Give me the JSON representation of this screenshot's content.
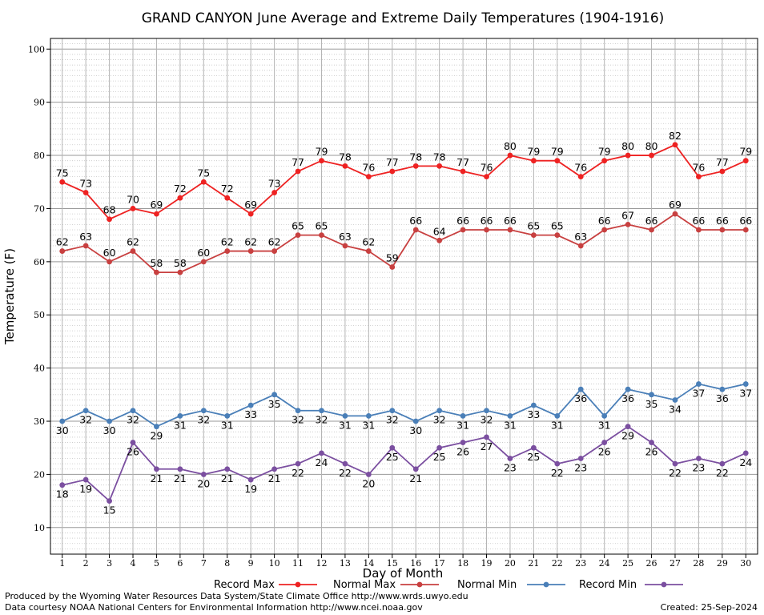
{
  "chart_data": {
    "type": "line",
    "title": "GRAND CANYON June Average and Extreme Daily Temperatures (1904-1916)",
    "xlabel": "Day of Month",
    "ylabel": "Temperature (F)",
    "xlim": [
      0.5,
      30.5
    ],
    "ylim": [
      5,
      102
    ],
    "yticks": [
      10,
      20,
      30,
      40,
      50,
      60,
      70,
      80,
      90,
      100
    ],
    "x": [
      1,
      2,
      3,
      4,
      5,
      6,
      7,
      8,
      9,
      10,
      11,
      12,
      13,
      14,
      15,
      16,
      17,
      18,
      19,
      20,
      21,
      22,
      23,
      24,
      25,
      26,
      27,
      28,
      29,
      30
    ],
    "grid": true,
    "legend_position": "bottom",
    "series": [
      {
        "name": "Record Max",
        "color": "#ee2222",
        "label_pos": "above",
        "values": [
          75,
          73,
          68,
          70,
          69,
          72,
          75,
          72,
          69,
          73,
          77,
          79,
          78,
          76,
          77,
          78,
          78,
          77,
          76,
          80,
          79,
          79,
          76,
          79,
          80,
          80,
          82,
          76,
          77,
          79
        ]
      },
      {
        "name": "Normal Max",
        "color": "#c84040",
        "label_pos": "above",
        "values": [
          62,
          63,
          60,
          62,
          58,
          58,
          60,
          62,
          62,
          62,
          65,
          65,
          63,
          62,
          59,
          66,
          64,
          66,
          66,
          66,
          65,
          65,
          63,
          66,
          67,
          66,
          69,
          66,
          66,
          66
        ]
      },
      {
        "name": "Normal Min",
        "color": "#4a7fb8",
        "label_pos": "below",
        "values": [
          30,
          32,
          30,
          32,
          29,
          31,
          32,
          31,
          33,
          35,
          32,
          32,
          31,
          31,
          32,
          30,
          32,
          31,
          32,
          31,
          33,
          31,
          36,
          31,
          36,
          35,
          34,
          37,
          36,
          37
        ]
      },
      {
        "name": "Record Min",
        "color": "#7b4fa0",
        "label_pos": "below",
        "values": [
          18,
          19,
          15,
          26,
          21,
          21,
          20,
          21,
          19,
          21,
          22,
          24,
          22,
          20,
          25,
          21,
          25,
          26,
          27,
          23,
          25,
          22,
          23,
          26,
          29,
          26,
          22,
          23,
          22,
          24
        ]
      }
    ]
  },
  "footer": {
    "line1": "Produced by the Wyoming Water Resources Data System/State Climate Office http://www.wrds.uwyo.edu",
    "line2": "Data courtesy NOAA National Centers for Environmental Information http://www.ncei.noaa.gov",
    "created": "Created: 25-Sep-2024"
  }
}
